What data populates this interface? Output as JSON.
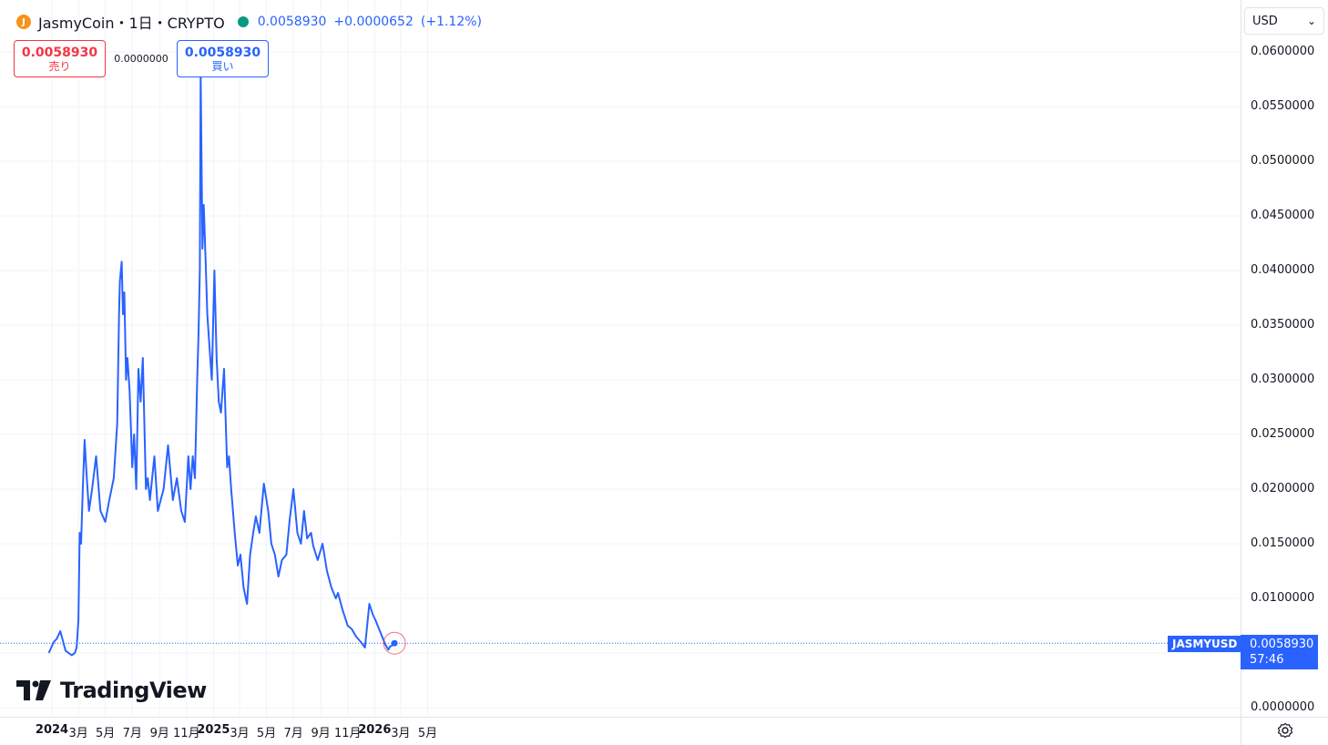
{
  "header": {
    "symbol_title": "JasmyCoin・1日・CRYPTO",
    "coin_icon": "jasmy-coin-icon",
    "price": "0.0058930",
    "change": "+0.0000652",
    "change_pct": "(+1.12%)",
    "status": "live"
  },
  "trade": {
    "sell_price": "0.0058930",
    "sell_label": "売り",
    "spread": "0.0000000",
    "buy_price": "0.0058930",
    "buy_label": "買い"
  },
  "currency": {
    "value": "USD"
  },
  "watermark": {
    "text": "TradingView"
  },
  "price_axis": {
    "labels": [
      "0.0600000",
      "0.0550000",
      "0.0500000",
      "0.0450000",
      "0.0400000",
      "0.0350000",
      "0.0300000",
      "0.0250000",
      "0.0200000",
      "0.0150000",
      "0.0100000",
      "0.0000000"
    ]
  },
  "last_price": {
    "symbol": "JASMYUSD",
    "price": "0.0058930",
    "countdown": "57:46"
  },
  "time_axis": {
    "labels": [
      {
        "text": "2024",
        "bold": true,
        "date": "2024-01-01"
      },
      {
        "text": "3月",
        "bold": false,
        "date": "2024-03-01"
      },
      {
        "text": "5月",
        "bold": false,
        "date": "2024-05-01"
      },
      {
        "text": "7月",
        "bold": false,
        "date": "2024-07-01"
      },
      {
        "text": "9月",
        "bold": false,
        "date": "2024-09-01"
      },
      {
        "text": "11月",
        "bold": false,
        "date": "2024-11-01"
      },
      {
        "text": "2025",
        "bold": true,
        "date": "2025-01-01"
      },
      {
        "text": "3月",
        "bold": false,
        "date": "2025-03-01"
      },
      {
        "text": "5月",
        "bold": false,
        "date": "2025-05-01"
      },
      {
        "text": "7月",
        "bold": false,
        "date": "2025-07-01"
      },
      {
        "text": "9月",
        "bold": false,
        "date": "2025-09-01"
      },
      {
        "text": "11月",
        "bold": false,
        "date": "2025-11-01"
      },
      {
        "text": "2026",
        "bold": true,
        "date": "2026-01-01"
      },
      {
        "text": "3月",
        "bold": false,
        "date": "2026-03-01"
      },
      {
        "text": "5月",
        "bold": false,
        "date": "2026-05-01"
      }
    ]
  },
  "chart_data": {
    "type": "line",
    "title": "JasmyCoin・1日・CRYPTO",
    "ylabel": "",
    "xlabel": "",
    "ylim": [
      0,
      0.06
    ],
    "grid": true,
    "line_color": "#2962ff",
    "series": [
      {
        "x": [
          "2023-12-25",
          "2024-01-05",
          "2024-01-12",
          "2024-01-20",
          "2024-02-01",
          "2024-02-15",
          "2024-02-22",
          "2024-02-26",
          "2024-03-01",
          "2024-03-04",
          "2024-03-07",
          "2024-03-11",
          "2024-03-15",
          "2024-03-20",
          "2024-03-25",
          "2024-04-01",
          "2024-04-10",
          "2024-04-20",
          "2024-05-01",
          "2024-05-10",
          "2024-05-20",
          "2024-05-28",
          "2024-06-01",
          "2024-06-03",
          "2024-06-07",
          "2024-06-10",
          "2024-06-13",
          "2024-06-17",
          "2024-06-20",
          "2024-06-25",
          "2024-07-01",
          "2024-07-05",
          "2024-07-10",
          "2024-07-15",
          "2024-07-20",
          "2024-07-25",
          "2024-08-01",
          "2024-08-05",
          "2024-08-10",
          "2024-08-20",
          "2024-08-28",
          "2024-09-10",
          "2024-09-20",
          "2024-10-01",
          "2024-10-10",
          "2024-10-20",
          "2024-10-28",
          "2024-11-05",
          "2024-11-10",
          "2024-11-15",
          "2024-11-20",
          "2024-11-25",
          "2024-11-28",
          "2024-12-01",
          "2024-12-03",
          "2024-12-05",
          "2024-12-07",
          "2024-12-10",
          "2024-12-14",
          "2024-12-18",
          "2024-12-23",
          "2024-12-28",
          "2025-01-03",
          "2025-01-08",
          "2025-01-13",
          "2025-01-18",
          "2025-01-25",
          "2025-02-01",
          "2025-02-05",
          "2025-02-10",
          "2025-02-18",
          "2025-02-25",
          "2025-03-03",
          "2025-03-10",
          "2025-03-18",
          "2025-03-25",
          "2025-04-01",
          "2025-04-07",
          "2025-04-15",
          "2025-04-25",
          "2025-05-05",
          "2025-05-12",
          "2025-05-20",
          "2025-05-28",
          "2025-06-05",
          "2025-06-15",
          "2025-06-22",
          "2025-07-01",
          "2025-07-10",
          "2025-07-18",
          "2025-07-25",
          "2025-08-01",
          "2025-08-10",
          "2025-08-15",
          "2025-08-25",
          "2025-09-05",
          "2025-09-15",
          "2025-09-25",
          "2025-10-05",
          "2025-10-10",
          "2025-10-20",
          "2025-11-01",
          "2025-11-10",
          "2025-11-20",
          "2025-12-01",
          "2025-12-10",
          "2025-12-20",
          "2025-12-28",
          "2026-01-03",
          "2026-01-08",
          "2026-01-15",
          "2026-01-25",
          "2026-02-01",
          "2026-02-05",
          "2026-02-10",
          "2026-02-15"
        ],
        "values": [
          0.005,
          0.006,
          0.0063,
          0.007,
          0.0052,
          0.0048,
          0.005,
          0.0055,
          0.008,
          0.016,
          0.015,
          0.02,
          0.0245,
          0.021,
          0.018,
          0.02,
          0.023,
          0.018,
          0.017,
          0.019,
          0.021,
          0.026,
          0.036,
          0.039,
          0.0408,
          0.036,
          0.038,
          0.03,
          0.032,
          0.029,
          0.022,
          0.025,
          0.02,
          0.031,
          0.028,
          0.032,
          0.02,
          0.021,
          0.019,
          0.023,
          0.018,
          0.02,
          0.024,
          0.019,
          0.021,
          0.018,
          0.017,
          0.023,
          0.02,
          0.023,
          0.021,
          0.03,
          0.034,
          0.04,
          0.058,
          0.05,
          0.042,
          0.046,
          0.041,
          0.036,
          0.033,
          0.03,
          0.04,
          0.032,
          0.028,
          0.027,
          0.031,
          0.022,
          0.023,
          0.02,
          0.016,
          0.013,
          0.014,
          0.011,
          0.0095,
          0.014,
          0.016,
          0.0175,
          0.016,
          0.0205,
          0.018,
          0.015,
          0.014,
          0.012,
          0.0135,
          0.014,
          0.017,
          0.02,
          0.016,
          0.015,
          0.018,
          0.0155,
          0.016,
          0.0148,
          0.0135,
          0.015,
          0.0125,
          0.011,
          0.01,
          0.0105,
          0.009,
          0.0075,
          0.0072,
          0.0065,
          0.006,
          0.0055,
          0.0095,
          0.0085,
          0.008,
          0.0075,
          0.0068,
          0.0058,
          0.0053,
          0.0056,
          0.0057,
          0.0059
        ]
      }
    ]
  }
}
